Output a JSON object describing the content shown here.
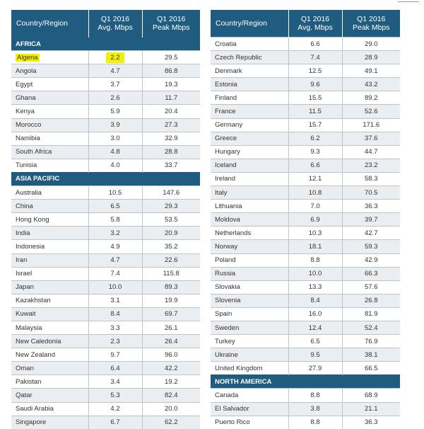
{
  "headers": {
    "country": "Country/Region",
    "avg_line1": "Q1 2016",
    "avg_line2": "Avg. Mbps",
    "peak_line1": "Q1 2016",
    "peak_line2": "Peak Mbps"
  },
  "highlight": {
    "row": "Algeria",
    "color": "#f4f100"
  },
  "left_rows": [
    {
      "type": "region",
      "name": "AFRICA"
    },
    {
      "name": "Algeria",
      "avg": "2.2",
      "peak": "29.5"
    },
    {
      "name": "Angola",
      "avg": "4.7",
      "peak": "86.8"
    },
    {
      "name": "Egypt",
      "avg": "3.7",
      "peak": "19.3"
    },
    {
      "name": "Ghana",
      "avg": "2.6",
      "peak": "11.7"
    },
    {
      "name": "Kenya",
      "avg": "5.9",
      "peak": "20.4"
    },
    {
      "name": "Morocco",
      "avg": "3.9",
      "peak": "27.3"
    },
    {
      "name": "Namibia",
      "avg": "3.0",
      "peak": "32.9"
    },
    {
      "name": "South Africa",
      "avg": "4.8",
      "peak": "28.8"
    },
    {
      "name": "Tunisia",
      "avg": "4.0",
      "peak": "33.7"
    },
    {
      "type": "region",
      "name": "ASIA PACIFIC"
    },
    {
      "name": "Australia",
      "avg": "10.5",
      "peak": "147.6"
    },
    {
      "name": "China",
      "avg": "6.5",
      "peak": "29.3"
    },
    {
      "name": "Hong Kong",
      "avg": "5.8",
      "peak": "53.5"
    },
    {
      "name": "India",
      "avg": "3.2",
      "peak": "20.9"
    },
    {
      "name": "Indonesia",
      "avg": "4.9",
      "peak": "35.2"
    },
    {
      "name": "Iran",
      "avg": "4.7",
      "peak": "22.6"
    },
    {
      "name": "Israel",
      "avg": "7.4",
      "peak": "115.8"
    },
    {
      "name": "Japan",
      "avg": "10.0",
      "peak": "89.3"
    },
    {
      "name": "Kazakhstan",
      "avg": "3.1",
      "peak": "19.9"
    },
    {
      "name": "Kuwait",
      "avg": "8.4",
      "peak": "69.7"
    },
    {
      "name": "Malaysia",
      "avg": "3.3",
      "peak": "26.1"
    },
    {
      "name": "New Caledonia",
      "avg": "2.3",
      "peak": "26.4"
    },
    {
      "name": "New Zealand",
      "avg": "9.7",
      "peak": "96.0"
    },
    {
      "name": "Oman",
      "avg": "6.4",
      "peak": "42.2"
    },
    {
      "name": "Pakistan",
      "avg": "3.4",
      "peak": "19.2"
    },
    {
      "name": "Qatar",
      "avg": "5.3",
      "peak": "82.4"
    },
    {
      "name": "Saudi Arabia",
      "avg": "4.2",
      "peak": "20.0"
    },
    {
      "name": "Singapore",
      "avg": "6.7",
      "peak": "62.2"
    }
  ],
  "right_rows": [
    {
      "name": "Croatia",
      "avg": "6.6",
      "peak": "29.0"
    },
    {
      "name": "Czech Republic",
      "avg": "7.4",
      "peak": "28.9"
    },
    {
      "name": "Denmark",
      "avg": "12.5",
      "peak": "49.1"
    },
    {
      "name": "Estonia",
      "avg": "9.6",
      "peak": "43.2"
    },
    {
      "name": "Finland",
      "avg": "15.5",
      "peak": "89.2"
    },
    {
      "name": "France",
      "avg": "11.5",
      "peak": "52.6"
    },
    {
      "name": "Germany",
      "avg": "15.7",
      "peak": "171.6"
    },
    {
      "name": "Greece",
      "avg": "6.2",
      "peak": "37.6"
    },
    {
      "name": "Hungary",
      "avg": "9.3",
      "peak": "44.7"
    },
    {
      "name": "Iceland",
      "avg": "6.6",
      "peak": "23.2"
    },
    {
      "name": "Ireland",
      "avg": "12.1",
      "peak": "58.3"
    },
    {
      "name": "Italy",
      "avg": "10.8",
      "peak": "70.5"
    },
    {
      "name": "Lithuania",
      "avg": "7.0",
      "peak": "36.3"
    },
    {
      "name": "Moldova",
      "avg": "6.9",
      "peak": "39.7"
    },
    {
      "name": "Netherlands",
      "avg": "10.3",
      "peak": "42.7"
    },
    {
      "name": "Norway",
      "avg": "18.1",
      "peak": "59.3"
    },
    {
      "name": "Poland",
      "avg": "8.8",
      "peak": "42.9"
    },
    {
      "name": "Russia",
      "avg": "10.0",
      "peak": "66.3"
    },
    {
      "name": "Slovakia",
      "avg": "13.3",
      "peak": "57.6"
    },
    {
      "name": "Slovenia",
      "avg": "8.4",
      "peak": "26.8"
    },
    {
      "name": "Spain",
      "avg": "16.0",
      "peak": "81.9"
    },
    {
      "name": "Sweden",
      "avg": "12.4",
      "peak": "52.4"
    },
    {
      "name": "Turkey",
      "avg": "6.5",
      "peak": "76.9"
    },
    {
      "name": "Ukraine",
      "avg": "9.5",
      "peak": "38.1"
    },
    {
      "name": "United Kingdom",
      "avg": "27.9",
      "peak": "66.5"
    },
    {
      "type": "region",
      "name": "NORTH AMERICA"
    },
    {
      "name": "Canada",
      "avg": "8.8",
      "peak": "68.9"
    },
    {
      "name": "El Salvador",
      "avg": "3.8",
      "peak": "21.1"
    },
    {
      "name": "Puerto Rico",
      "avg": "8.8",
      "peak": "36.3"
    }
  ]
}
